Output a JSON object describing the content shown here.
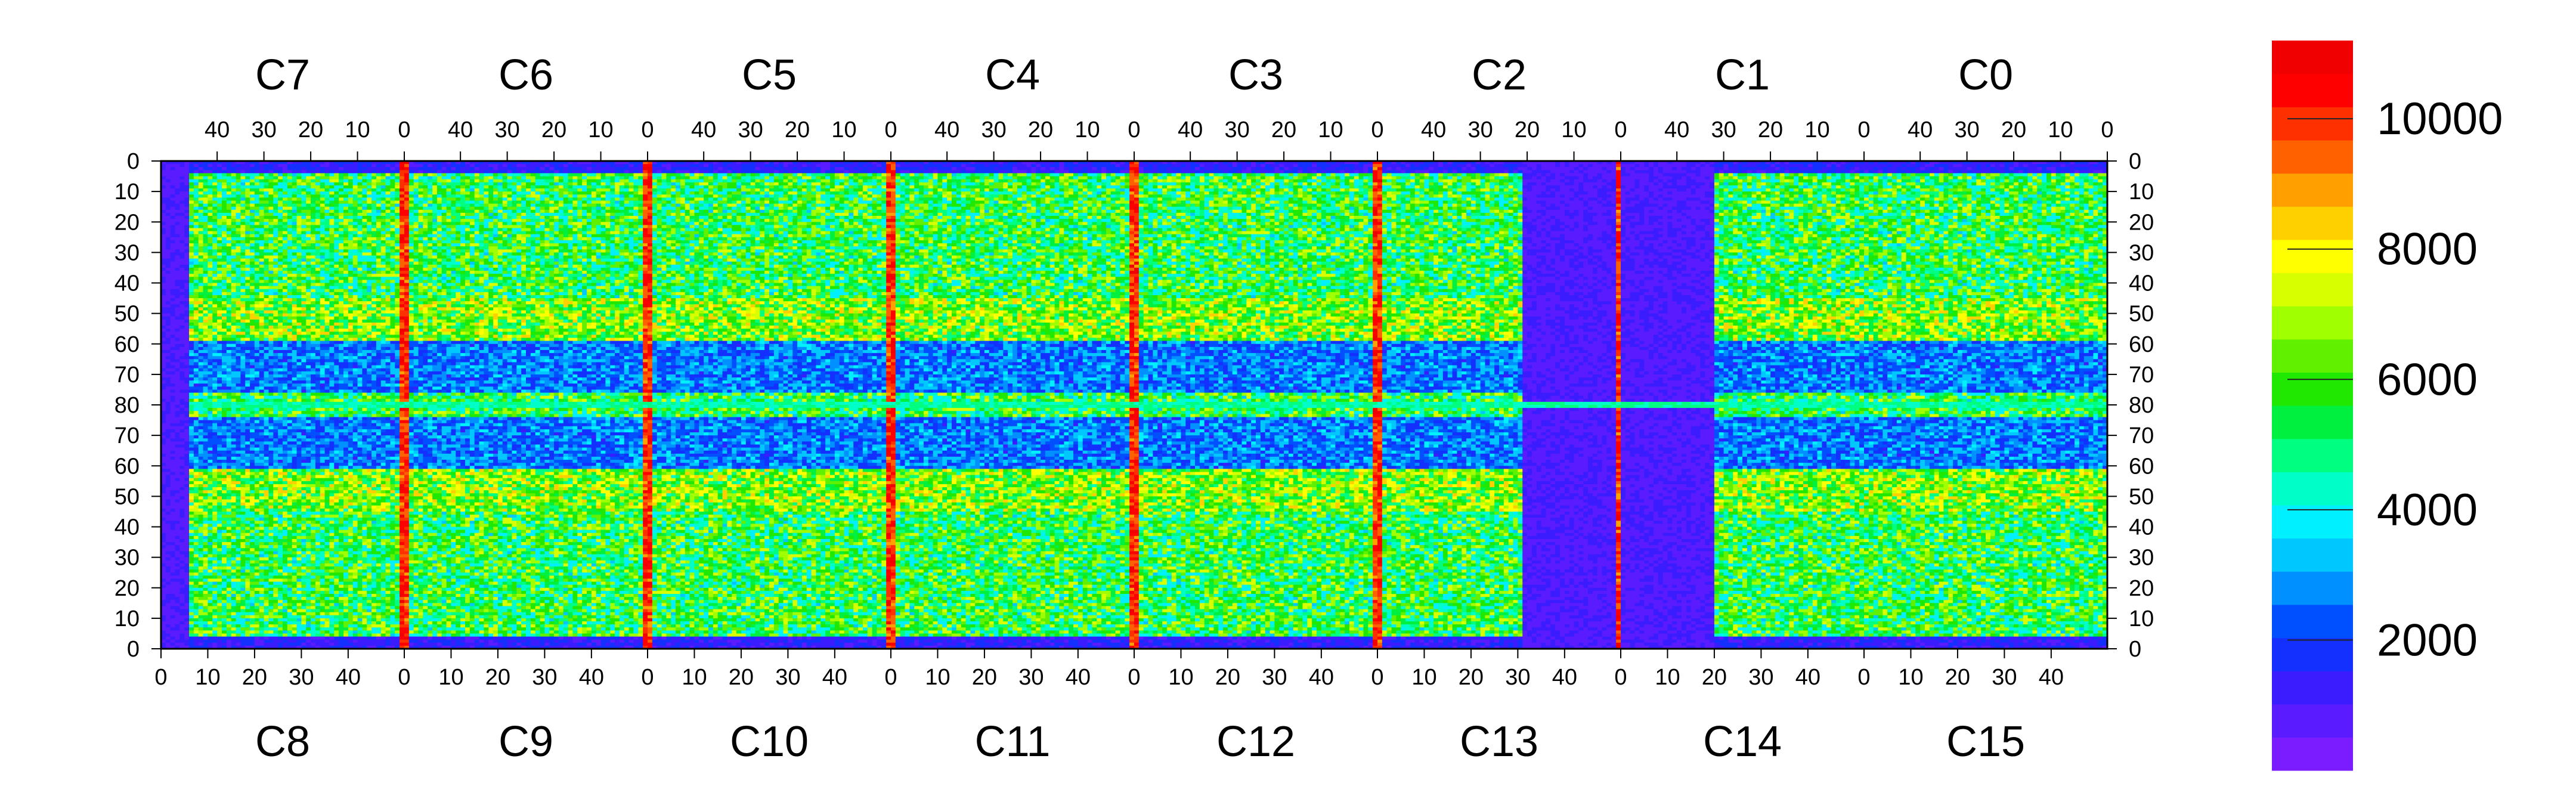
{
  "chart_data": {
    "type": "heatmap",
    "title": "",
    "xlabel": "",
    "ylabel": "",
    "top_chip_labels": [
      "C7",
      "C6",
      "C5",
      "C4",
      "C3",
      "C2",
      "C1",
      "C0"
    ],
    "bottom_chip_labels": [
      "C8",
      "C9",
      "C10",
      "C11",
      "C12",
      "C13",
      "C14",
      "C15"
    ],
    "columns_per_chip": 52,
    "rows_per_half": 80,
    "top_x_tick_labels": [
      "40",
      "30",
      "20",
      "10",
      "0"
    ],
    "bottom_x_tick_labels": [
      "0",
      "10",
      "20",
      "30",
      "40"
    ],
    "y_tick_labels_top_half": [
      "0",
      "10",
      "20",
      "30",
      "40",
      "50",
      "60",
      "70",
      "80"
    ],
    "y_tick_labels_bottom_half": [
      "70",
      "60",
      "50",
      "40",
      "30",
      "20",
      "10",
      "0"
    ],
    "color_scale": {
      "min": 0,
      "max": 11200,
      "tick_labels": [
        "2000",
        "4000",
        "6000",
        "8000",
        "10000"
      ],
      "tick_values": [
        2000,
        4000,
        6000,
        8000,
        10000
      ],
      "colors": [
        "#7a1cff",
        "#5a1cff",
        "#3a1cff",
        "#1430ff",
        "#0050ff",
        "#0090ff",
        "#00c8ff",
        "#00f0ff",
        "#00ffc8",
        "#00ff80",
        "#00f040",
        "#20e800",
        "#60f000",
        "#a0ff00",
        "#d8ff00",
        "#ffff00",
        "#ffd000",
        "#ffa000",
        "#ff6000",
        "#ff3000",
        "#ff0000",
        "#f00000"
      ]
    },
    "value_summary": {
      "bright_columns_top": [
        0,
        52,
        104,
        156,
        208,
        260,
        312
      ],
      "low_region": "chip C13/C2 right half and center band near row 80 at low counts",
      "typical_range": [
        1000,
        10500
      ]
    }
  }
}
